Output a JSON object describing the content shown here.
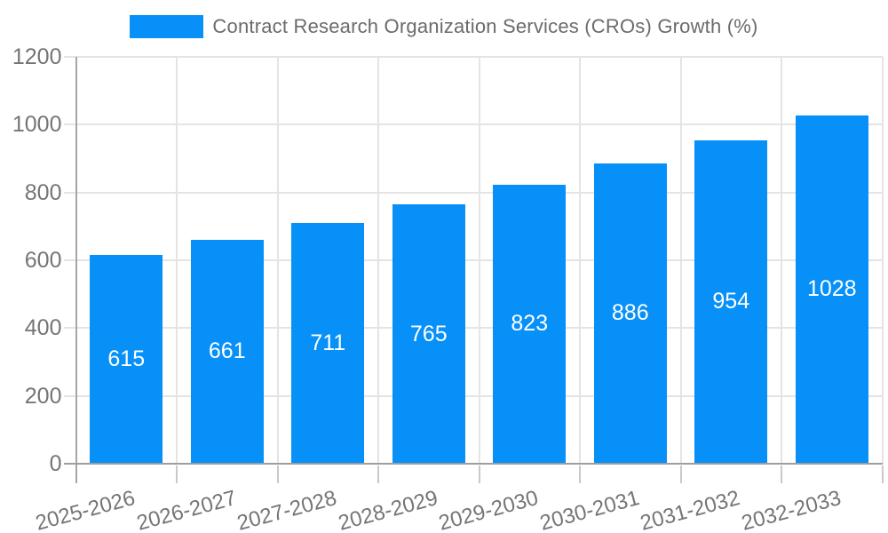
{
  "legend": {
    "label": "Contract Research Organization Services (CROs) Growth (%)",
    "swatch_color": "#0790f8"
  },
  "chart_data": {
    "type": "bar",
    "title": "Contract Research Organization Services (CROs) Growth (%)",
    "categories": [
      "2025-2026",
      "2026-2027",
      "2027-2028",
      "2028-2029",
      "2029-2030",
      "2030-2031",
      "2031-2032",
      "2032-2033"
    ],
    "values": [
      615,
      661,
      711,
      765,
      823,
      886,
      954,
      1028
    ],
    "series_name": "Contract Research Organization Services (CROs) Growth (%)",
    "xlabel": "",
    "ylabel": "",
    "ylim": [
      0,
      1200
    ],
    "yticks": [
      0,
      200,
      400,
      600,
      800,
      1000,
      1200
    ],
    "grid": true,
    "legend_position": "top",
    "bar_color": "#0790f8",
    "value_label_color": "#ffffff",
    "tick_label_color": "#757575",
    "gridline_color": "#e4e4e4",
    "axis_line_color": "#9e9e9e"
  }
}
